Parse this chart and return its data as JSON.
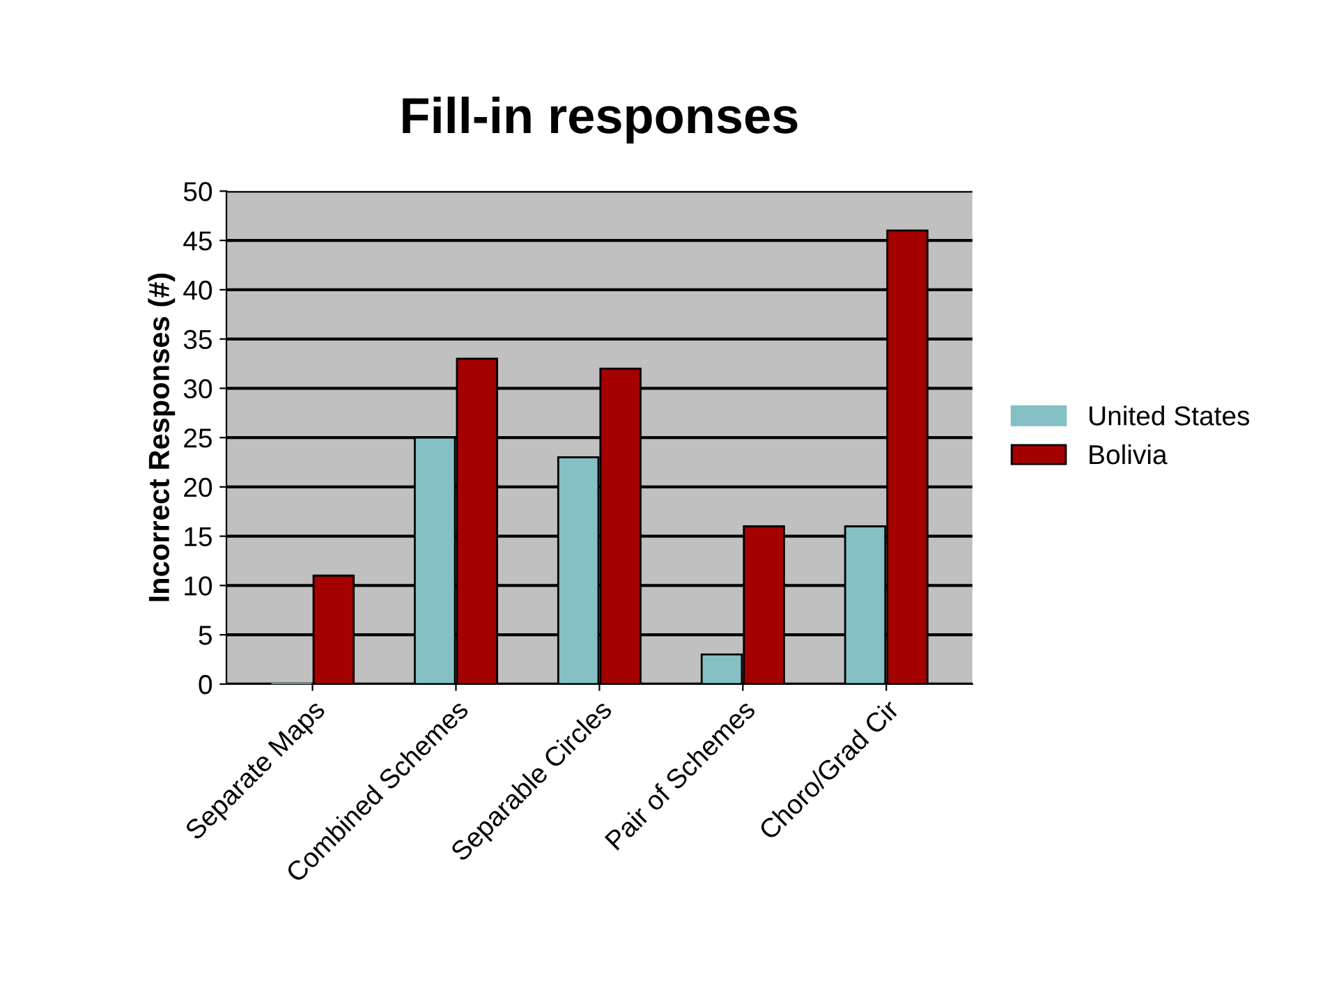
{
  "chart_data": {
    "type": "bar",
    "title": "Fill-in responses",
    "ylabel": "Incorrect Responses (#)",
    "categories": [
      "Separate Maps",
      "Combined Schemes",
      "Separable Circles",
      "Pair of Schemes",
      "Choro/Grad Cir"
    ],
    "series": [
      {
        "name": "United States",
        "color": "#85c0c4",
        "values": [
          0,
          25,
          23,
          3,
          16
        ]
      },
      {
        "name": "Bolivia",
        "color": "#a50000",
        "values": [
          11,
          33,
          32,
          16,
          46
        ]
      }
    ],
    "ylim": [
      0,
      50
    ],
    "yticks": [
      0,
      5,
      10,
      15,
      20,
      25,
      30,
      35,
      40,
      45,
      50
    ],
    "grid": "y",
    "legend": "right"
  }
}
